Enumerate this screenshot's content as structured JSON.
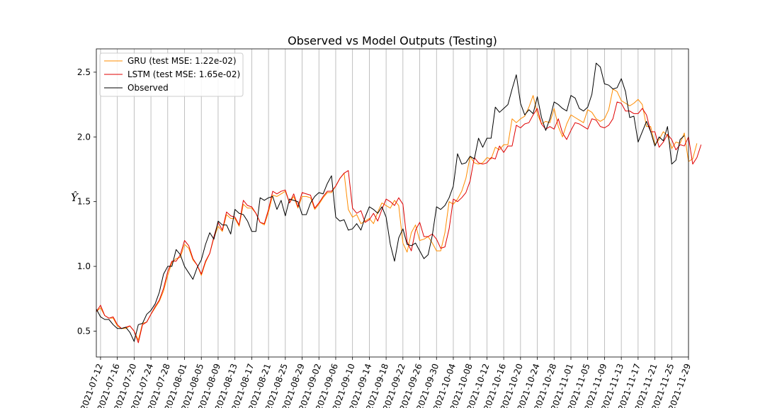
{
  "chart_data": {
    "type": "line",
    "title": "Observed vs Model Outputs (Testing)",
    "xlabel": "",
    "ylabel": "Ŷ",
    "x_start": "2021-07-11",
    "x_range": [
      "2021-07-11",
      "2021-11-29"
    ],
    "ylim": [
      0.3,
      2.68
    ],
    "yticks": [
      0.5,
      1.0,
      1.5,
      2.0,
      2.5
    ],
    "ytick_labels": [
      "0.5",
      "1.0",
      "1.5",
      "2.0",
      "2.5"
    ],
    "xtick_labels": [
      "2021-07-12",
      "2021-07-16",
      "2021-07-20",
      "2021-07-24",
      "2021-07-28",
      "2021-08-01",
      "2021-08-05",
      "2021-08-09",
      "2021-08-13",
      "2021-08-17",
      "2021-08-21",
      "2021-08-25",
      "2021-08-29",
      "2021-09-02",
      "2021-09-06",
      "2021-09-10",
      "2021-09-14",
      "2021-09-18",
      "2021-09-22",
      "2021-09-26",
      "2021-09-30",
      "2021-10-04",
      "2021-10-08",
      "2021-10-12",
      "2021-10-16",
      "2021-10-20",
      "2021-10-24",
      "2021-10-28",
      "2021-11-01",
      "2021-11-05",
      "2021-11-09",
      "2021-11-13",
      "2021-11-17",
      "2021-11-21",
      "2021-11-25",
      "2021-11-29"
    ],
    "grid": "vertical",
    "legend_position": "top-left",
    "series": [
      {
        "name": "GRU (test MSE: 1.22e-02)",
        "color": "#ff8c00",
        "values": [
          0.65,
          0.68,
          0.62,
          0.6,
          0.6,
          0.54,
          0.52,
          0.52,
          0.54,
          0.5,
          0.43,
          0.56,
          0.57,
          0.63,
          0.68,
          0.73,
          0.81,
          0.93,
          1.03,
          1.06,
          1.07,
          1.17,
          1.14,
          1.05,
          1.01,
          0.93,
          1.03,
          1.1,
          1.22,
          1.31,
          1.27,
          1.4,
          1.37,
          1.37,
          1.31,
          1.48,
          1.45,
          1.45,
          1.41,
          1.34,
          1.32,
          1.42,
          1.55,
          1.54,
          1.56,
          1.58,
          1.49,
          1.54,
          1.45,
          1.54,
          1.54,
          1.53,
          1.44,
          1.48,
          1.53,
          1.57,
          1.57,
          1.62,
          1.68,
          1.72,
          1.44,
          1.38,
          1.4,
          1.33,
          1.35,
          1.37,
          1.33,
          1.42,
          1.49,
          1.47,
          1.45,
          1.51,
          1.47,
          1.18,
          1.11,
          1.26,
          1.32,
          1.2,
          1.21,
          1.23,
          1.18,
          1.12,
          1.12,
          1.26,
          1.5,
          1.48,
          1.52,
          1.58,
          1.68,
          1.85,
          1.8,
          1.79,
          1.8,
          1.84,
          1.83,
          1.92,
          1.9,
          1.94,
          1.94,
          2.14,
          2.11,
          2.14,
          2.16,
          2.23,
          2.32,
          2.18,
          2.1,
          2.12,
          2.11,
          2.22,
          2.08,
          2.0,
          2.1,
          2.17,
          2.15,
          2.13,
          2.11,
          2.21,
          2.19,
          2.14,
          2.12,
          2.14,
          2.21,
          2.37,
          2.35,
          2.28,
          2.26,
          2.24,
          2.26,
          2.29,
          2.25,
          2.08,
          2.08,
          1.94,
          1.98,
          2.04,
          2.01,
          1.91,
          1.96,
          1.95,
          2.03,
          1.81,
          1.83,
          1.95
        ]
      },
      {
        "name": "LSTM (test MSE: 1.65e-02)",
        "color": "#e00000",
        "values": [
          0.65,
          0.7,
          0.62,
          0.6,
          0.61,
          0.55,
          0.52,
          0.53,
          0.54,
          0.5,
          0.41,
          0.55,
          0.57,
          0.63,
          0.69,
          0.74,
          0.83,
          0.96,
          1.04,
          1.04,
          1.09,
          1.2,
          1.16,
          1.06,
          1.01,
          0.94,
          1.04,
          1.1,
          1.23,
          1.34,
          1.28,
          1.42,
          1.39,
          1.38,
          1.32,
          1.51,
          1.47,
          1.46,
          1.41,
          1.34,
          1.33,
          1.44,
          1.58,
          1.56,
          1.58,
          1.59,
          1.49,
          1.56,
          1.46,
          1.57,
          1.56,
          1.55,
          1.45,
          1.49,
          1.54,
          1.58,
          1.58,
          1.62,
          1.68,
          1.72,
          1.74,
          1.45,
          1.41,
          1.43,
          1.34,
          1.36,
          1.41,
          1.35,
          1.44,
          1.52,
          1.5,
          1.47,
          1.53,
          1.48,
          1.19,
          1.12,
          1.28,
          1.34,
          1.23,
          1.23,
          1.25,
          1.21,
          1.14,
          1.15,
          1.29,
          1.52,
          1.5,
          1.53,
          1.57,
          1.66,
          1.84,
          1.8,
          1.79,
          1.8,
          1.84,
          1.83,
          1.93,
          1.88,
          1.93,
          1.93,
          2.09,
          2.07,
          2.1,
          2.11,
          2.17,
          2.22,
          2.1,
          2.06,
          2.08,
          2.06,
          2.14,
          2.03,
          1.98,
          2.05,
          2.11,
          2.1,
          2.08,
          2.06,
          2.14,
          2.13,
          2.08,
          2.07,
          2.09,
          2.14,
          2.27,
          2.26,
          2.2,
          2.2,
          2.18,
          2.18,
          2.22,
          2.17,
          2.04,
          2.04,
          1.92,
          1.96,
          2.02,
          1.98,
          1.9,
          1.94,
          1.93,
          2.0,
          1.79,
          1.84,
          1.94
        ]
      },
      {
        "name": "Observed",
        "color": "#000000",
        "values": [
          0.67,
          0.61,
          0.59,
          0.59,
          0.55,
          0.52,
          0.52,
          0.53,
          0.49,
          0.42,
          0.55,
          0.56,
          0.63,
          0.66,
          0.71,
          0.8,
          0.94,
          1.0,
          1.0,
          1.13,
          1.09,
          1.0,
          0.95,
          0.9,
          0.99,
          1.05,
          1.17,
          1.26,
          1.21,
          1.35,
          1.32,
          1.32,
          1.25,
          1.44,
          1.41,
          1.4,
          1.35,
          1.27,
          1.27,
          1.53,
          1.51,
          1.53,
          1.54,
          1.44,
          1.51,
          1.39,
          1.52,
          1.51,
          1.5,
          1.4,
          1.4,
          1.49,
          1.54,
          1.57,
          1.56,
          1.64,
          1.7,
          1.38,
          1.35,
          1.36,
          1.28,
          1.29,
          1.33,
          1.28,
          1.38,
          1.46,
          1.44,
          1.41,
          1.46,
          1.38,
          1.17,
          1.04,
          1.22,
          1.29,
          1.17,
          1.16,
          1.18,
          1.12,
          1.06,
          1.09,
          1.24,
          1.46,
          1.44,
          1.47,
          1.53,
          1.62,
          1.87,
          1.79,
          1.8,
          1.85,
          1.83,
          1.99,
          1.92,
          1.99,
          1.99,
          2.23,
          2.19,
          2.22,
          2.25,
          2.37,
          2.48,
          2.26,
          2.17,
          2.21,
          2.18,
          2.31,
          2.15,
          2.05,
          2.14,
          2.27,
          2.25,
          2.22,
          2.2,
          2.32,
          2.3,
          2.22,
          2.2,
          2.23,
          2.33,
          2.57,
          2.54,
          2.41,
          2.4,
          2.37,
          2.38,
          2.45,
          2.35,
          2.15,
          2.16,
          1.96,
          2.04,
          2.12,
          2.04,
          1.93,
          2.0,
          1.97,
          2.08,
          1.79,
          1.82,
          1.98,
          2.01
        ]
      }
    ]
  }
}
